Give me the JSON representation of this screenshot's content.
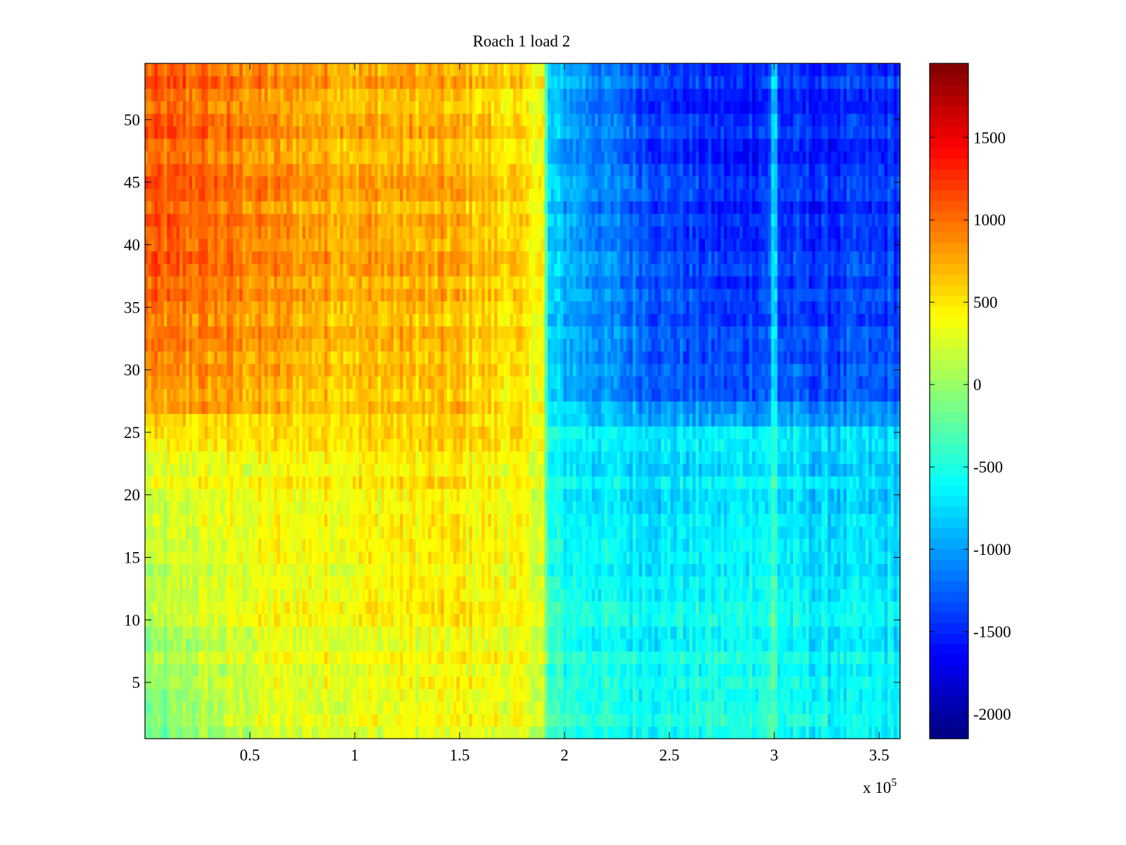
{
  "chart_data": {
    "type": "heatmap",
    "title": "Roach 1 load 2",
    "xlabel": "",
    "ylabel": "",
    "x_multiplier_label": {
      "base": "x 10",
      "exponent": "5"
    },
    "xlim": [
      0,
      3.6
    ],
    "ylim": [
      0.5,
      54.5
    ],
    "x_ticks": [
      0.5,
      1,
      1.5,
      2,
      2.5,
      3,
      3.5
    ],
    "x_tick_labels": [
      "0.5",
      "1",
      "1.5",
      "2",
      "2.5",
      "3",
      "3.5"
    ],
    "y_ticks": [
      5,
      10,
      15,
      20,
      25,
      30,
      35,
      40,
      45,
      50
    ],
    "y_tick_labels": [
      "5",
      "10",
      "15",
      "20",
      "25",
      "30",
      "35",
      "40",
      "45",
      "50"
    ],
    "rows": 54,
    "colormap": "jet",
    "clim": [
      -2150,
      1950
    ],
    "colorbar_ticks": [
      1500,
      1000,
      500,
      0,
      -500,
      -1000,
      -1500,
      -2000
    ],
    "colorbar_tick_labels": [
      "1500",
      "1000",
      "500",
      "0",
      "-500",
      "-1000",
      "-1500",
      "-2000"
    ],
    "approximate_structure": {
      "x_anchors": [
        0,
        0.3,
        0.6,
        1.0,
        1.5,
        1.75,
        1.9,
        1.92,
        2.2,
        2.5,
        2.8,
        2.98,
        3.0,
        3.02,
        3.2,
        3.6
      ],
      "low_rows_value": [
        -250,
        50,
        250,
        300,
        350,
        300,
        200,
        -400,
        -500,
        -550,
        -500,
        -450,
        -200,
        -550,
        -600,
        -650
      ],
      "mid_rows_value": [
        350,
        450,
        450,
        500,
        550,
        450,
        350,
        -600,
        -700,
        -750,
        -700,
        -650,
        -300,
        -700,
        -800,
        -800
      ],
      "high_rows_value": [
        1050,
        1000,
        850,
        750,
        700,
        550,
        400,
        -850,
        -1150,
        -1400,
        -1550,
        -1400,
        -500,
        -1450,
        -1500,
        -1450
      ]
    }
  }
}
